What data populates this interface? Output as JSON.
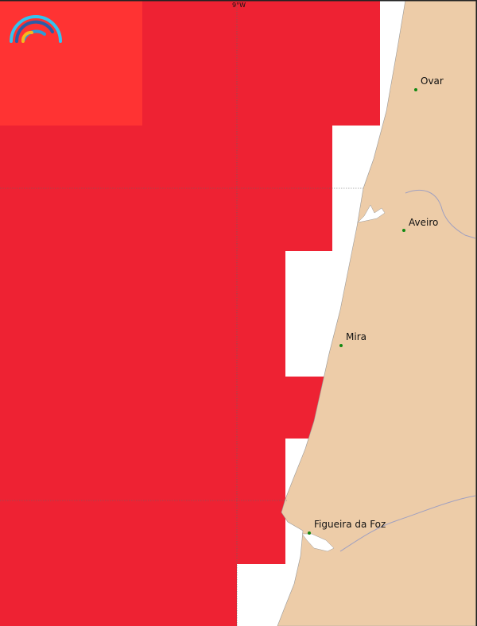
{
  "map": {
    "graticule_label": "9°W",
    "cities": [
      {
        "name": "Ovar"
      },
      {
        "name": "Aveiro"
      },
      {
        "name": "Mira"
      },
      {
        "name": "Figueira da Foz"
      }
    ],
    "colors": {
      "land": "#EDCCA8",
      "sea": "#FFFFFF",
      "warning_red": "#EE2233",
      "warning_light_red": "#FF3333",
      "city_dot": "#118811",
      "river": "#A0A0C0"
    },
    "logo_icon": "rainbow-arcs-logo-icon"
  }
}
